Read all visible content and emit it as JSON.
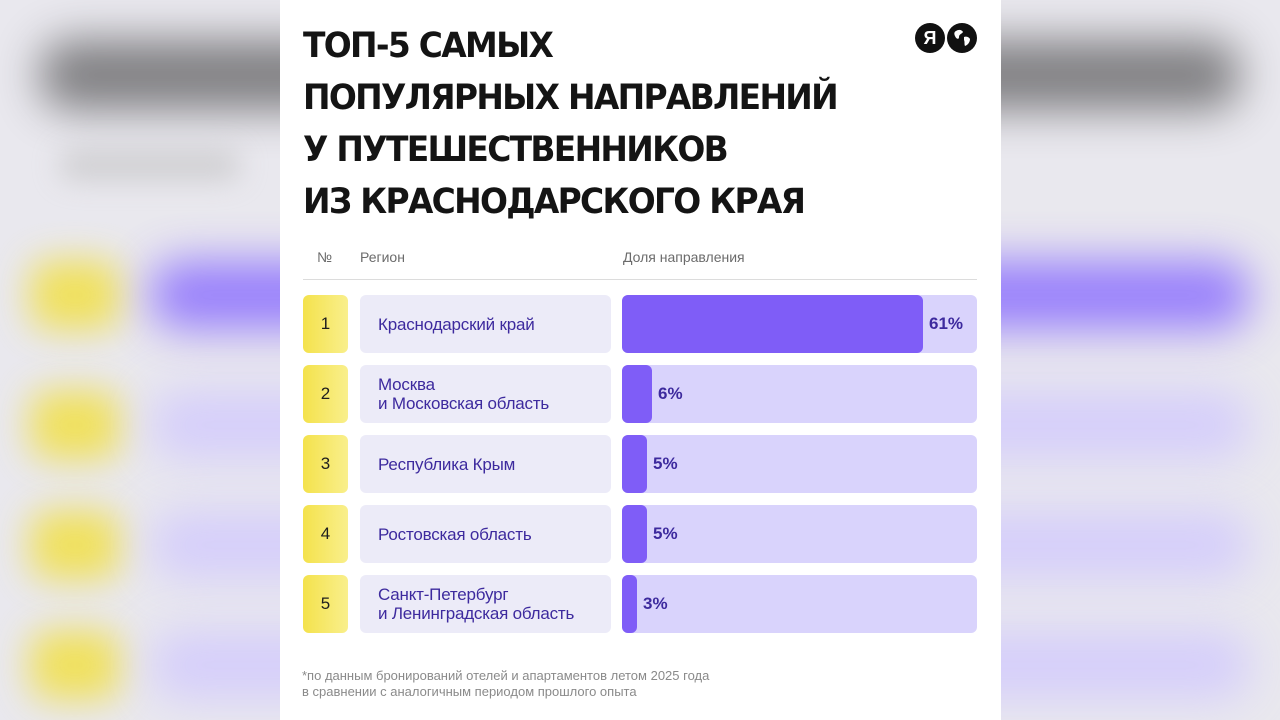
{
  "title": "ТОП-5 САМЫХ\nПОПУЛЯРНЫХ НАПРАВЛЕНИЙ\nУ ПУТЕШЕСТВЕННИКОВ\nИЗ КРАСНОДАРСКОГО КРАЯ",
  "logos": {
    "ya_letter": "Я",
    "icons": [
      "yandex-logo-icon",
      "globe-icon"
    ]
  },
  "colors": {
    "accent": "#7f5df7",
    "track": "#d9d3fc",
    "rank": "#f4e24c",
    "label": "#3d2a9e"
  },
  "chart_data": {
    "type": "bar",
    "columns": [
      "№",
      "Регион",
      "Доля направления"
    ],
    "categories": [
      "Краснодарский край",
      "Москва\nи Московская область",
      "Республика Крым",
      "Ростовская область",
      "Санкт-Петербург\nи Ленинградская область"
    ],
    "ranks": [
      "1",
      "2",
      "3",
      "4",
      "5"
    ],
    "values": [
      61,
      6,
      5,
      5,
      3
    ],
    "value_labels": [
      "61%",
      "6%",
      "5%",
      "5%",
      "3%"
    ],
    "xlim": [
      0,
      72
    ]
  },
  "footnote": "*по данным бронирований отелей и апартаментов летом 2025 года\nв сравнении с аналогичным периодом прошлого опыта"
}
